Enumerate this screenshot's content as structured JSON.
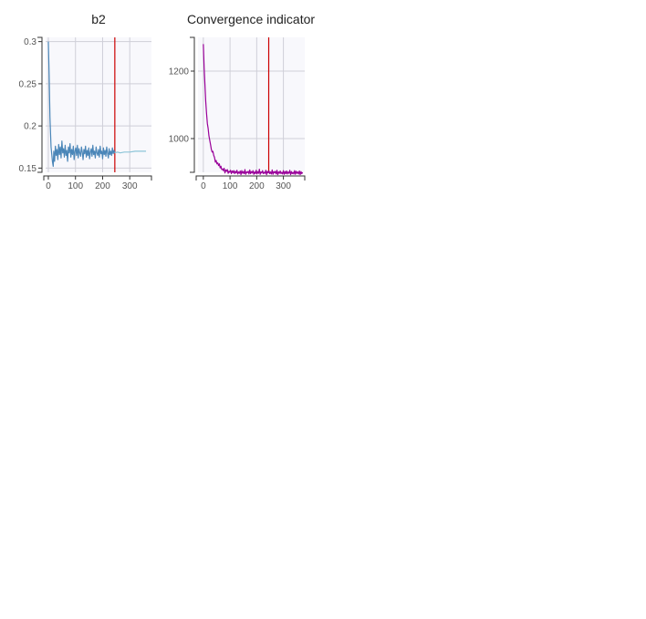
{
  "colors": {
    "plot_background": "#f8f8fc",
    "grid": "#cfcfd8",
    "axis": "#333333",
    "cutoff_line": "#cc0000"
  },
  "chart_data": [
    {
      "type": "line",
      "title": "b2",
      "xlabel": "",
      "ylabel": "",
      "xlim": [
        -10,
        380
      ],
      "ylim": [
        0.145,
        0.305
      ],
      "x_ticks": [
        0,
        100,
        200,
        300
      ],
      "y_ticks": [
        0.15,
        0.2,
        0.25,
        0.3
      ],
      "x_tick_labels": [
        "0",
        "100",
        "200",
        "300"
      ],
      "y_tick_labels": [
        "0.15",
        "0.2",
        "0.25",
        "0.3"
      ],
      "grid": true,
      "vertical_line": {
        "x": 245,
        "color": "#cc0000"
      },
      "series": [
        {
          "color": "#4a86b8",
          "x": [
            0,
            3,
            6,
            10,
            15,
            18,
            20,
            23,
            26,
            29,
            32,
            35,
            38,
            41,
            44,
            47,
            50,
            53,
            56,
            59,
            62,
            65,
            68,
            71,
            74,
            77,
            80,
            83,
            86,
            89,
            92,
            95,
            98,
            101,
            104,
            107,
            110,
            113,
            116,
            119,
            122,
            125,
            128,
            131,
            134,
            137,
            140,
            143,
            146,
            149,
            152,
            155,
            158,
            161,
            164,
            167,
            170,
            173,
            176,
            179,
            182,
            185,
            188,
            191,
            194,
            197,
            200,
            203,
            206,
            209,
            212,
            215,
            218,
            221,
            224,
            227,
            230,
            233,
            236,
            239,
            242,
            245
          ],
          "y": [
            0.3,
            0.26,
            0.21,
            0.175,
            0.158,
            0.152,
            0.17,
            0.158,
            0.176,
            0.165,
            0.172,
            0.16,
            0.178,
            0.166,
            0.175,
            0.162,
            0.182,
            0.168,
            0.173,
            0.163,
            0.177,
            0.165,
            0.171,
            0.158,
            0.175,
            0.168,
            0.179,
            0.163,
            0.172,
            0.166,
            0.176,
            0.16,
            0.17,
            0.174,
            0.165,
            0.177,
            0.162,
            0.173,
            0.168,
            0.164,
            0.175,
            0.169,
            0.16,
            0.172,
            0.167,
            0.176,
            0.163,
            0.171,
            0.165,
            0.174,
            0.161,
            0.169,
            0.173,
            0.164,
            0.177,
            0.166,
            0.17,
            0.162,
            0.175,
            0.168,
            0.165,
            0.172,
            0.163,
            0.176,
            0.167,
            0.17,
            0.161,
            0.174,
            0.166,
            0.171,
            0.164,
            0.175,
            0.168,
            0.162,
            0.173,
            0.166,
            0.17,
            0.165,
            0.174,
            0.167,
            0.171,
            0.168
          ]
        },
        {
          "color": "#8cc4d8",
          "x": [
            245,
            255,
            265,
            280,
            300,
            320,
            340,
            360
          ],
          "y": [
            0.168,
            0.169,
            0.168,
            0.169,
            0.169,
            0.17,
            0.17,
            0.17
          ]
        }
      ]
    },
    {
      "type": "line",
      "title": "Convergence indicator",
      "xlabel": "",
      "ylabel": "",
      "xlim": [
        -20,
        380
      ],
      "ylim": [
        900,
        1300
      ],
      "x_ticks": [
        0,
        100,
        200,
        300
      ],
      "y_ticks": [
        1000,
        1200
      ],
      "x_tick_labels": [
        "0",
        "100",
        "200",
        "300"
      ],
      "y_tick_labels": [
        "1000",
        "1200"
      ],
      "grid": true,
      "vertical_line": {
        "x": 245,
        "color": "#cc0000"
      },
      "series": [
        {
          "color": "#990099",
          "x": [
            0,
            3,
            6,
            9,
            12,
            15,
            18,
            21,
            24,
            27,
            30,
            33,
            36,
            39,
            42,
            45,
            48,
            51,
            54,
            57,
            60,
            63,
            66,
            69,
            72,
            75,
            78,
            81,
            84,
            87,
            90,
            93,
            96,
            99,
            102,
            105,
            108,
            111,
            114,
            117,
            120,
            123,
            126,
            129,
            132,
            135,
            138,
            141,
            144,
            147,
            150,
            153,
            156,
            159,
            162,
            165,
            168,
            171,
            174,
            177,
            180,
            183,
            186,
            189,
            192,
            195,
            198,
            201,
            204,
            207,
            210,
            213,
            216,
            219,
            222,
            225,
            228,
            231,
            234,
            237,
            240,
            243,
            246,
            249,
            252,
            255,
            258,
            261,
            264,
            267,
            270,
            273,
            276,
            279,
            282,
            285,
            288,
            291,
            294,
            297,
            300,
            303,
            306,
            309,
            312,
            315,
            318,
            321,
            324,
            327,
            330,
            333,
            336,
            339,
            342,
            345,
            348,
            351,
            354,
            357,
            360,
            363,
            366,
            369,
            372
          ],
          "y": [
            1280,
            1210,
            1160,
            1110,
            1075,
            1045,
            1030,
            1008,
            995,
            982,
            968,
            960,
            962,
            950,
            944,
            930,
            935,
            925,
            928,
            920,
            925,
            913,
            918,
            908,
            910,
            905,
            912,
            898,
            907,
            903,
            908,
            897,
            903,
            900,
            906,
            896,
            904,
            899,
            905,
            896,
            903,
            898,
            906,
            895,
            901,
            897,
            904,
            893,
            905,
            897,
            902,
            896,
            908,
            894,
            901,
            899,
            903,
            895,
            907,
            896,
            902,
            898,
            905,
            894,
            901,
            896,
            906,
            895,
            902,
            897,
            909,
            894,
            901,
            898,
            905,
            896,
            900,
            897,
            906,
            893,
            903,
            898,
            904,
            896,
            901,
            895,
            907,
            894,
            902,
            898,
            903,
            895,
            906,
            893,
            901,
            897,
            904,
            896,
            900,
            895,
            905,
            894,
            902,
            896,
            904,
            895,
            901,
            897,
            906,
            893,
            902,
            896,
            900,
            895,
            905,
            894,
            903,
            897,
            901,
            895,
            904,
            893,
            902,
            896,
            900
          ]
        }
      ]
    }
  ]
}
